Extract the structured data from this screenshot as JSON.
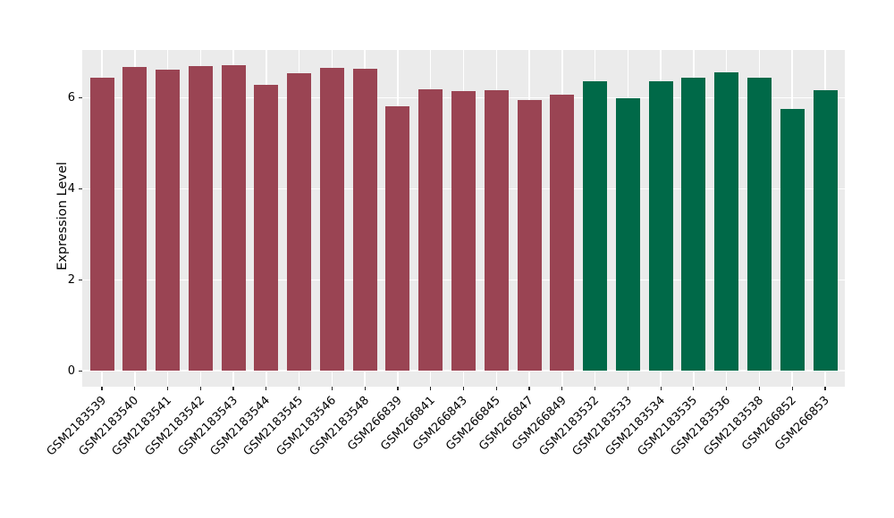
{
  "chart_data": {
    "type": "bar",
    "title": "",
    "xlabel": "",
    "ylabel": "Expression Level",
    "yticks": [
      0,
      2,
      4,
      6
    ],
    "ylim": [
      -0.35,
      7.05
    ],
    "grid": true,
    "legend": "none",
    "panel_bg": "#EBEBEB",
    "grid_color": "#FFFFFF",
    "tick_color": "#262626",
    "text_color": "#000000",
    "group_colors": {
      "group1": "#9A4453",
      "group2": "#006948"
    },
    "bars": [
      {
        "label": "GSM2183539",
        "value": 6.45,
        "group": "group1"
      },
      {
        "label": "GSM2183540",
        "value": 6.68,
        "group": "group1"
      },
      {
        "label": "GSM2183541",
        "value": 6.62,
        "group": "group1"
      },
      {
        "label": "GSM2183542",
        "value": 6.69,
        "group": "group1"
      },
      {
        "label": "GSM2183543",
        "value": 6.71,
        "group": "group1"
      },
      {
        "label": "GSM2183544",
        "value": 6.28,
        "group": "group1"
      },
      {
        "label": "GSM2183545",
        "value": 6.53,
        "group": "group1"
      },
      {
        "label": "GSM2183546",
        "value": 6.65,
        "group": "group1"
      },
      {
        "label": "GSM2183548",
        "value": 6.63,
        "group": "group1"
      },
      {
        "label": "GSM266839",
        "value": 5.82,
        "group": "group1"
      },
      {
        "label": "GSM266841",
        "value": 6.19,
        "group": "group1"
      },
      {
        "label": "GSM266843",
        "value": 6.14,
        "group": "group1"
      },
      {
        "label": "GSM266845",
        "value": 6.16,
        "group": "group1"
      },
      {
        "label": "GSM266847",
        "value": 5.96,
        "group": "group1"
      },
      {
        "label": "GSM266849",
        "value": 6.06,
        "group": "group1"
      },
      {
        "label": "GSM2183532",
        "value": 6.36,
        "group": "group2"
      },
      {
        "label": "GSM2183533",
        "value": 5.99,
        "group": "group2"
      },
      {
        "label": "GSM2183534",
        "value": 6.36,
        "group": "group2"
      },
      {
        "label": "GSM2183535",
        "value": 6.45,
        "group": "group2"
      },
      {
        "label": "GSM2183536",
        "value": 6.55,
        "group": "group2"
      },
      {
        "label": "GSM2183538",
        "value": 6.45,
        "group": "group2"
      },
      {
        "label": "GSM266852",
        "value": 5.75,
        "group": "group2"
      },
      {
        "label": "GSM266853",
        "value": 6.16,
        "group": "group2"
      }
    ]
  }
}
